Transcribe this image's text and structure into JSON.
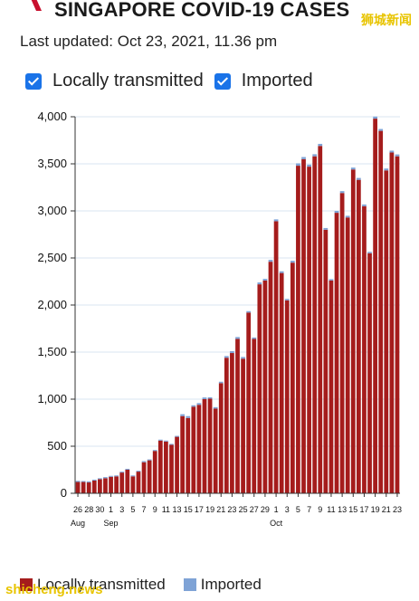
{
  "header": {
    "title": "SINGAPORE COVID-19 CASES",
    "last_updated": "Last updated: Oct 23, 2021, 11.36 pm",
    "watermark_top": "狮城新闻",
    "watermark_bottom": "shicheng.news"
  },
  "filters": [
    {
      "label": "Locally transmitted",
      "checked": true
    },
    {
      "label": "Imported",
      "checked": true
    }
  ],
  "colors": {
    "local": "#a51c1c",
    "imported": "#7fa3d6",
    "accent": "#1a73e8",
    "brand": "#c8102e"
  },
  "legend": [
    {
      "label": "Locally transmitted",
      "color": "#a51c1c"
    },
    {
      "label": "Imported",
      "color": "#7fa3d6"
    }
  ],
  "chart_data": {
    "type": "bar",
    "stacked": true,
    "ylim": [
      0,
      4000
    ],
    "yticks": [
      0,
      500,
      1000,
      1500,
      2000,
      2500,
      3000,
      3500,
      4000
    ],
    "ytick_labels": [
      "0",
      "500",
      "1,000",
      "1,500",
      "2,000",
      "2,500",
      "3,000",
      "3,500",
      "4,000"
    ],
    "grid": true,
    "legend_position": "bottom-left",
    "categories": [
      "Aug 26",
      "Aug 27",
      "Aug 28",
      "Aug 29",
      "Aug 30",
      "Aug 31",
      "Sep 1",
      "Sep 2",
      "Sep 3",
      "Sep 4",
      "Sep 5",
      "Sep 6",
      "Sep 7",
      "Sep 8",
      "Sep 9",
      "Sep 10",
      "Sep 11",
      "Sep 12",
      "Sep 13",
      "Sep 14",
      "Sep 15",
      "Sep 16",
      "Sep 17",
      "Sep 18",
      "Sep 19",
      "Sep 20",
      "Sep 21",
      "Sep 22",
      "Sep 23",
      "Sep 24",
      "Sep 25",
      "Sep 26",
      "Sep 27",
      "Sep 28",
      "Sep 29",
      "Sep 30",
      "Oct 1",
      "Oct 2",
      "Oct 3",
      "Oct 4",
      "Oct 5",
      "Oct 6",
      "Oct 7",
      "Oct 8",
      "Oct 9",
      "Oct 10",
      "Oct 11",
      "Oct 12",
      "Oct 13",
      "Oct 14",
      "Oct 15",
      "Oct 16",
      "Oct 17",
      "Oct 18",
      "Oct 19",
      "Oct 20",
      "Oct 21",
      "Oct 22",
      "Oct 23"
    ],
    "tick_labels": [
      {
        "index": 0,
        "day": "26",
        "month": "Aug"
      },
      {
        "index": 2,
        "day": "28"
      },
      {
        "index": 4,
        "day": "30"
      },
      {
        "index": 6,
        "day": "1",
        "month": "Sep"
      },
      {
        "index": 8,
        "day": "3"
      },
      {
        "index": 10,
        "day": "5"
      },
      {
        "index": 12,
        "day": "7"
      },
      {
        "index": 14,
        "day": "9"
      },
      {
        "index": 16,
        "day": "11"
      },
      {
        "index": 18,
        "day": "13"
      },
      {
        "index": 20,
        "day": "15"
      },
      {
        "index": 22,
        "day": "17"
      },
      {
        "index": 24,
        "day": "19"
      },
      {
        "index": 26,
        "day": "21"
      },
      {
        "index": 28,
        "day": "23"
      },
      {
        "index": 30,
        "day": "25"
      },
      {
        "index": 32,
        "day": "27"
      },
      {
        "index": 34,
        "day": "29"
      },
      {
        "index": 36,
        "day": "1",
        "month": "Oct"
      },
      {
        "index": 38,
        "day": "3"
      },
      {
        "index": 40,
        "day": "5"
      },
      {
        "index": 42,
        "day": "7"
      },
      {
        "index": 44,
        "day": "9"
      },
      {
        "index": 46,
        "day": "11"
      },
      {
        "index": 48,
        "day": "13"
      },
      {
        "index": 50,
        "day": "15"
      },
      {
        "index": 52,
        "day": "17"
      },
      {
        "index": 54,
        "day": "19"
      },
      {
        "index": 56,
        "day": "21"
      },
      {
        "index": 58,
        "day": "23"
      }
    ],
    "series": [
      {
        "name": "Locally transmitted",
        "values": [
          120,
          120,
          115,
          135,
          150,
          160,
          175,
          180,
          220,
          250,
          180,
          230,
          330,
          350,
          450,
          560,
          550,
          515,
          600,
          820,
          800,
          920,
          940,
          1000,
          1005,
          900,
          1170,
          1440,
          1490,
          1640,
          1430,
          1920,
          1640,
          2220,
          2260,
          2460,
          2890,
          2340,
          2050,
          2450,
          3480,
          3550,
          3470,
          3580,
          3690,
          2800,
          2260,
          2980,
          3190,
          2930,
          3440,
          3330,
          3050,
          2550,
          3980,
          3850,
          3430,
          3620,
          3580
        ]
      },
      {
        "name": "Imported",
        "values": [
          12,
          10,
          12,
          10,
          10,
          12,
          10,
          10,
          10,
          10,
          10,
          10,
          12,
          10,
          10,
          10,
          10,
          10,
          10,
          20,
          20,
          15,
          18,
          18,
          15,
          15,
          15,
          18,
          20,
          20,
          18,
          15,
          15,
          20,
          18,
          20,
          20,
          18,
          15,
          20,
          25,
          22,
          22,
          22,
          22,
          18,
          15,
          20,
          20,
          18,
          20,
          20,
          18,
          15,
          22,
          20,
          20,
          20,
          20
        ]
      }
    ]
  }
}
